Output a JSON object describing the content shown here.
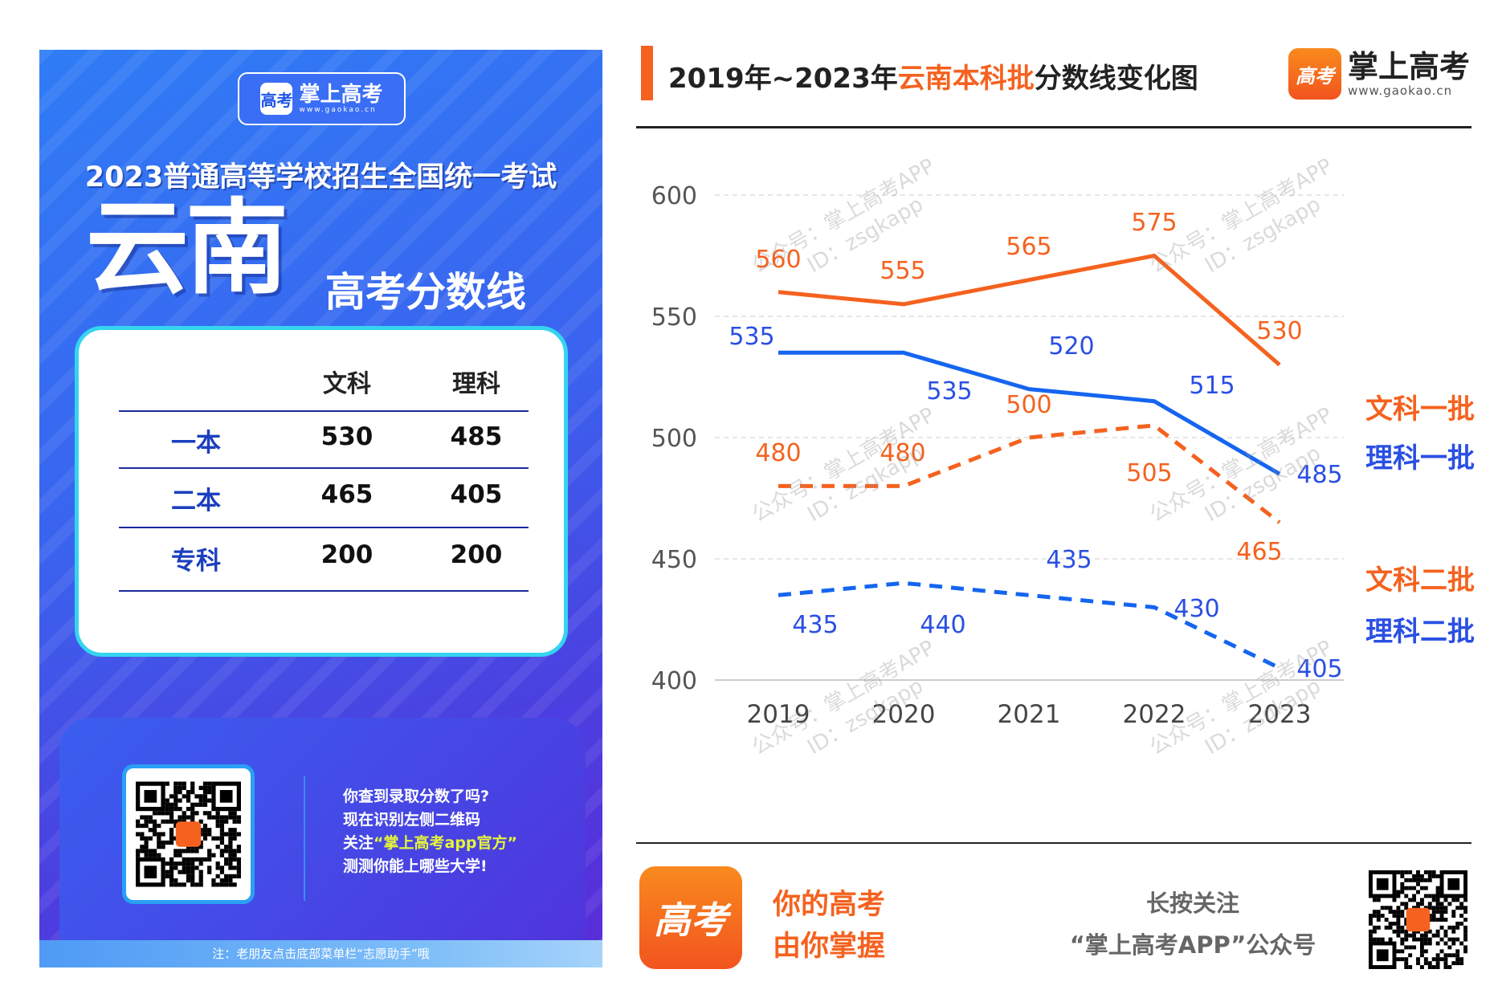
{
  "poster": {
    "logo_name": "掌上高考",
    "logo_url": "www.gaokao.cn",
    "logo_glyph": "高考",
    "headline": "2023普通高等学校招生全国统一考试",
    "province": "云南",
    "subtitle": "高考分数线",
    "table": {
      "headers": [
        "文科",
        "理科"
      ],
      "rows": [
        {
          "label": "一本",
          "wenke": "530",
          "like": "485"
        },
        {
          "label": "二本",
          "wenke": "465",
          "like": "405"
        },
        {
          "label": "专科",
          "wenke": "200",
          "like": "200"
        }
      ]
    },
    "promo_lines": [
      "你查到录取分数了吗?",
      "现在识别左侧二维码"
    ],
    "promo_follow_prefix": "关注",
    "promo_follow_highlight": "“掌上高考app官方”",
    "promo_last": "测测你能上哪些大学!",
    "footnote": "注：老朋友点击底部菜单栏“志愿助手”哦"
  },
  "header": {
    "title_prefix": "2019年~2023年",
    "title_highlight": "云南本科批",
    "title_suffix": "分数线变化图",
    "brand_name": "掌上高考",
    "brand_url": "www.gaokao.cn",
    "brand_glyph": "高考"
  },
  "watermark": {
    "line1": "公众号：掌上高考APP",
    "line2": "ID：zsgkapp"
  },
  "footer": {
    "slogan1": "你的高考",
    "slogan2": "由你掌握",
    "follow1": "长按关注",
    "follow2": "“掌上高考APP”公众号",
    "logo_glyph": "高考"
  },
  "colors": {
    "orange": "#f5621f",
    "blue": "#1565f0",
    "label_blue": "#2a4fe3"
  },
  "chart_data": {
    "type": "line",
    "categories": [
      "2019",
      "2020",
      "2021",
      "2022",
      "2023"
    ],
    "ylim": [
      400,
      600
    ],
    "yticks": [
      400,
      450,
      500,
      550,
      600
    ],
    "grid": true,
    "legend": "right",
    "series": [
      {
        "name": "文科一批",
        "color": "orange",
        "style": "solid",
        "values": [
          560,
          555,
          565,
          575,
          530
        ]
      },
      {
        "name": "理科一批",
        "color": "blue",
        "style": "solid",
        "values": [
          535,
          535,
          520,
          515,
          485
        ]
      },
      {
        "name": "文科二批",
        "color": "orange",
        "style": "dashed",
        "values": [
          480,
          480,
          500,
          505,
          465
        ]
      },
      {
        "name": "理科二批",
        "color": "blue",
        "style": "dashed",
        "values": [
          435,
          440,
          435,
          430,
          405
        ]
      }
    ]
  }
}
